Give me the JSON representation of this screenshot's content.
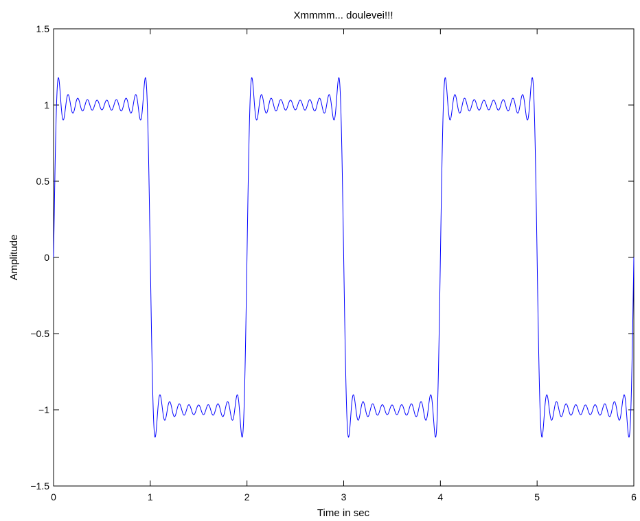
{
  "chart_data": {
    "type": "line",
    "title": "Xmmmm... doulevei!!!",
    "xlabel": "Time in sec",
    "ylabel": "Amplitude",
    "xlim": [
      0,
      6
    ],
    "ylim": [
      -1.5,
      1.5
    ],
    "x_ticks": [
      0,
      1,
      2,
      3,
      4,
      5,
      6
    ],
    "y_ticks": [
      -1.5,
      -1,
      -0.5,
      0,
      0.5,
      1,
      1.5
    ],
    "x_tick_labels": [
      "0",
      "1",
      "2",
      "3",
      "4",
      "5",
      "6"
    ],
    "y_tick_labels": [
      "−1.5",
      "−1",
      "−0.5",
      "0",
      "0.5",
      "1",
      "1.5"
    ],
    "grid": false,
    "series": [
      {
        "color": "#0000ff",
        "function": "Fourier partial sum of a square wave, period 2 s, amplitude 1, odd harmonics 1 to 19",
        "period": 2,
        "amplitude": 1,
        "max_harmonic": 19,
        "x_range": [
          0,
          6
        ],
        "sample_count": 3000
      }
    ]
  }
}
